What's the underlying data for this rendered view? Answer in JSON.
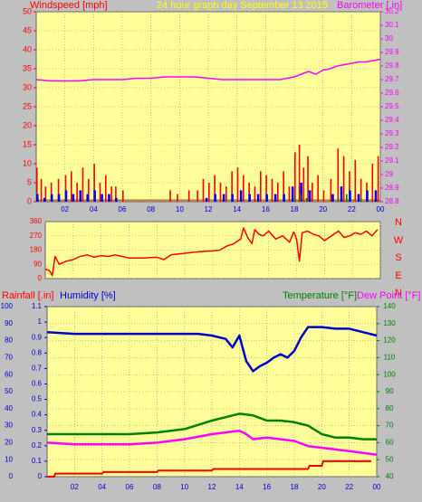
{
  "colors": {
    "background": "#c0c0c0",
    "plot": "#ffff99",
    "grid": "#9e9e9e",
    "wind": "#ff0000",
    "wind_gust": "#ff0000",
    "wind_avg": "#0000ff",
    "wind_low": "#008000",
    "barometer": "#ff00ff",
    "direction": "#ff0000",
    "rainfall": "#ff0000",
    "humidity": "#0000cc",
    "temperature": "#008000",
    "dewpoint": "#ff00ff",
    "title": "#ffff00"
  },
  "top_chart": {
    "left_label": "Windspeed [mph]",
    "title": "24 hour graph day    September 13 2015",
    "right_label": "Barometer [.in]",
    "left_ticks": [
      "0",
      "5",
      "10",
      "15",
      "20",
      "25",
      "30",
      "35",
      "40",
      "45",
      "50"
    ],
    "right_ticks": [
      "28.8",
      "28.9",
      "29",
      "29.1",
      "29.2",
      "29.3",
      "29.4",
      "29.5",
      "29.6",
      "29.7",
      "29.8",
      "29.9",
      "30",
      "30.1",
      "30.2"
    ],
    "x_ticks": [
      "02",
      "04",
      "06",
      "08",
      "10",
      "12",
      "14",
      "16",
      "18",
      "20",
      "22",
      "00"
    ]
  },
  "mid_chart": {
    "left_ticks": [
      "0",
      "90",
      "180",
      "270",
      "360"
    ],
    "compass": [
      "N",
      "W",
      "S",
      "E",
      "N"
    ]
  },
  "bottom_chart": {
    "rain_label": "Rainfall [.in]",
    "humidity_label": "Humidity [%]",
    "temp_label": "Temperature [°F]",
    "dew_label": "Dew Point [°F]",
    "hum_ticks": [
      "0",
      "10",
      "20",
      "30",
      "40",
      "50",
      "60",
      "70",
      "80",
      "90",
      "100"
    ],
    "rain_ticks": [
      "0",
      "0.1",
      "0.2",
      "0.3",
      "0.4",
      "0.5",
      "0.6",
      "0.7",
      "0.8",
      "0.9",
      "1",
      "1.1"
    ],
    "temp_ticks": [
      "40",
      "50",
      "60",
      "70",
      "80",
      "90",
      "100",
      "110",
      "120",
      "130",
      "140"
    ],
    "x_ticks": [
      "02",
      "04",
      "06",
      "08",
      "10",
      "12",
      "14",
      "16",
      "18",
      "20",
      "22",
      "00"
    ]
  },
  "chart_data": [
    {
      "type": "bar",
      "x_unit": "hours",
      "xlim": [
        0,
        24
      ],
      "ylabel": "Windspeed [mph]",
      "ylim": [
        0,
        50
      ],
      "gust_x": [
        0.0,
        0.3,
        0.6,
        1.0,
        1.5,
        2.0,
        2.4,
        2.8,
        3.2,
        3.6,
        4.0,
        4.4,
        4.8,
        5.2,
        5.5,
        6.0,
        9.3,
        9.8,
        10.6,
        11.2,
        11.6,
        12.0,
        12.4,
        12.8,
        13.2,
        13.6,
        14.0,
        14.4,
        14.8,
        15.2,
        15.6,
        16.0,
        16.4,
        16.8,
        17.2,
        17.6,
        18.0,
        18.3,
        18.6,
        18.9,
        19.2,
        19.6,
        20.0,
        20.5,
        21.0,
        21.4,
        21.8,
        22.2,
        22.6,
        23.0,
        23.4,
        23.8
      ],
      "gust_y": [
        9,
        6,
        4,
        5,
        6,
        7,
        8,
        5,
        9,
        6,
        10,
        5,
        7,
        4,
        4,
        3,
        3,
        2,
        3,
        3,
        6,
        5,
        7,
        5,
        4,
        8,
        9,
        7,
        5,
        4,
        8,
        7,
        6,
        5,
        8,
        4,
        13,
        15,
        9,
        12,
        5,
        7,
        3,
        6,
        14,
        12,
        8,
        11,
        6,
        5,
        10,
        12
      ],
      "avg_x": [
        0.0,
        0.5,
        1.0,
        1.5,
        2.0,
        2.5,
        3.0,
        3.5,
        4.0,
        4.5,
        5.0,
        5.5,
        11.8,
        12.4,
        13.0,
        13.6,
        14.2,
        14.8,
        15.4,
        16.0,
        16.6,
        17.2,
        17.8,
        18.4,
        19.0,
        20.6,
        21.2,
        21.8,
        22.4,
        23.0,
        23.6
      ],
      "avg_y": [
        2,
        1,
        2,
        2,
        3,
        2,
        3,
        2,
        3,
        2,
        2,
        1,
        1,
        2,
        2,
        2,
        3,
        2,
        2,
        2,
        2,
        2,
        4,
        5,
        3,
        2,
        4,
        3,
        2,
        3,
        3
      ],
      "low_x": [
        18.0,
        18.4,
        18.8,
        21.0,
        21.6,
        22.6
      ],
      "low_y": [
        1,
        2,
        1,
        1,
        2,
        1
      ],
      "series_right": {
        "ylim": [
          28.8,
          30.2
        ],
        "x": [
          0,
          1,
          2,
          3,
          4,
          5,
          6,
          7,
          8,
          9,
          10,
          11,
          12,
          13,
          14,
          15,
          16,
          17,
          17.5,
          18,
          18.5,
          19,
          19.5,
          20,
          20.5,
          21,
          21.5,
          22,
          22.5,
          23,
          23.5,
          24
        ],
        "y": [
          29.7,
          29.69,
          29.69,
          29.69,
          29.7,
          29.7,
          29.7,
          29.71,
          29.71,
          29.72,
          29.72,
          29.72,
          29.71,
          29.7,
          29.7,
          29.7,
          29.7,
          29.7,
          29.71,
          29.72,
          29.74,
          29.76,
          29.74,
          29.77,
          29.78,
          29.8,
          29.81,
          29.82,
          29.83,
          29.83,
          29.84,
          29.85
        ]
      }
    },
    {
      "type": "line",
      "x_unit": "hours",
      "xlim": [
        0,
        24
      ],
      "ylim": [
        0,
        360
      ],
      "x": [
        0,
        0.3,
        0.5,
        0.7,
        1.0,
        1.5,
        2.0,
        2.5,
        3.0,
        3.5,
        4.0,
        4.5,
        5.0,
        5.5,
        6.0,
        7.0,
        8.0,
        8.5,
        9.0,
        10.0,
        10.5,
        11.0,
        12.0,
        12.5,
        13.0,
        13.5,
        14.0,
        14.2,
        14.5,
        14.8,
        15.0,
        15.3,
        15.6,
        16.0,
        16.5,
        17.0,
        17.5,
        17.8,
        18.0,
        18.2,
        18.4,
        18.8,
        19.2,
        19.6,
        20.0,
        20.5,
        21.0,
        21.4,
        21.8,
        22.2,
        22.6,
        23.0,
        23.4,
        23.8
      ],
      "y": [
        60,
        50,
        20,
        140,
        90,
        110,
        120,
        140,
        150,
        135,
        145,
        140,
        150,
        140,
        130,
        130,
        135,
        120,
        150,
        160,
        165,
        170,
        175,
        180,
        205,
        220,
        250,
        320,
        260,
        220,
        310,
        280,
        270,
        300,
        250,
        270,
        230,
        295,
        250,
        110,
        290,
        300,
        280,
        270,
        240,
        270,
        300,
        260,
        270,
        290,
        280,
        300,
        270,
        310
      ]
    },
    {
      "type": "line",
      "x_unit": "hours",
      "xlim": [
        0,
        24
      ],
      "series": [
        {
          "name": "Rainfall [.in]",
          "ylim": [
            0,
            1.1
          ],
          "x": [
            0,
            0.5,
            0.6,
            4.0,
            4.1,
            8.0,
            8.1,
            12.0,
            12.1,
            19.0,
            19.1,
            20.0,
            20.1,
            23.6
          ],
          "y": [
            0,
            0,
            0.02,
            0.02,
            0.03,
            0.03,
            0.04,
            0.04,
            0.05,
            0.05,
            0.07,
            0.07,
            0.1,
            0.1
          ]
        },
        {
          "name": "Humidity [%]",
          "ylim": [
            0,
            100
          ],
          "x": [
            0,
            2,
            4,
            6,
            8,
            10,
            11,
            12,
            13,
            13.5,
            14,
            14.5,
            15,
            15.5,
            16,
            16.5,
            17,
            17.5,
            18,
            18.5,
            19,
            20,
            21,
            22,
            23,
            24
          ],
          "y": [
            85,
            84,
            84,
            84,
            84,
            84,
            84,
            83,
            81,
            76,
            83,
            68,
            62,
            65,
            67,
            70,
            72,
            70,
            74,
            82,
            88,
            88,
            87,
            87,
            85,
            83
          ]
        },
        {
          "name": "Temperature [°F]",
          "ylim": [
            40,
            140
          ],
          "x": [
            0,
            2,
            4,
            6,
            8,
            10,
            12,
            13,
            14,
            15,
            16,
            17,
            18,
            19,
            20,
            21,
            22,
            23,
            24
          ],
          "y": [
            65,
            65,
            65,
            65,
            66,
            68,
            73,
            75,
            77,
            76,
            73,
            73,
            72,
            70,
            65,
            63,
            63,
            62,
            62
          ]
        },
        {
          "name": "Dew Point [°F]",
          "ylim": [
            40,
            140
          ],
          "x": [
            0,
            2,
            4,
            6,
            8,
            10,
            12,
            13,
            14,
            14.5,
            15,
            16,
            17,
            18,
            19,
            20,
            21,
            22,
            23,
            24
          ],
          "y": [
            60,
            59,
            59,
            59,
            60,
            62,
            65,
            66,
            67,
            65,
            62,
            63,
            62,
            61,
            58,
            57,
            56,
            55,
            54,
            53
          ]
        }
      ]
    }
  ]
}
